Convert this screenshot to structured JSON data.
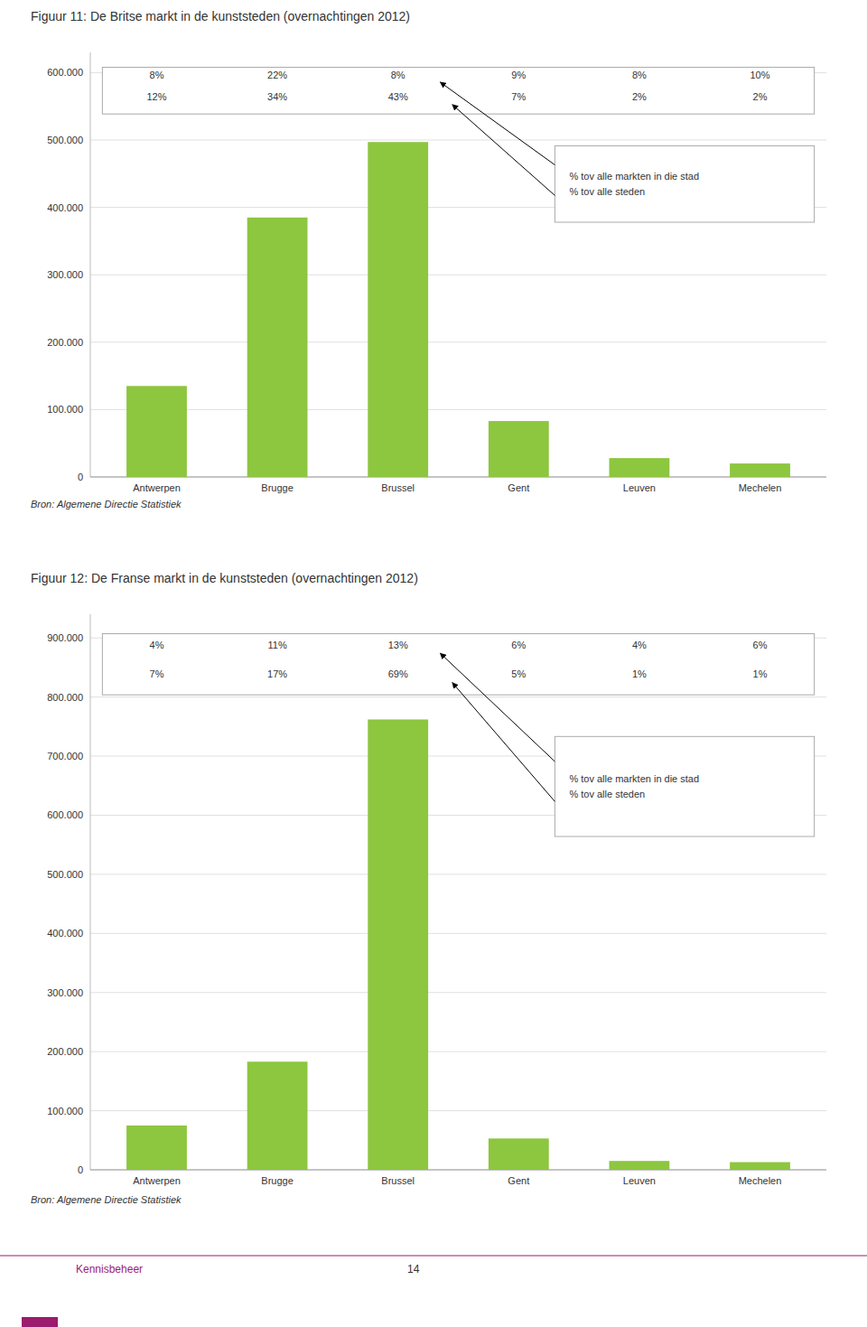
{
  "chart_data": [
    {
      "type": "bar",
      "title": "Figuur 11: De Britse markt in de kunststeden (overnachtingen 2012)",
      "categories": [
        "Antwerpen",
        "Brugge",
        "Brussel",
        "Gent",
        "Leuven",
        "Mechelen"
      ],
      "values": [
        135000,
        385000,
        497000,
        83000,
        28000,
        20000
      ],
      "color": "#8dc63f",
      "ylim": [
        0,
        630000
      ],
      "yticks": [
        0,
        {
          "value": 100000,
          "label": "100.000"
        },
        {
          "value": 200000,
          "label": "200.000"
        },
        {
          "value": 300000,
          "label": "300.000"
        },
        {
          "value": 400000,
          "label": "400.000"
        },
        {
          "value": 500000,
          "label": "500.000"
        },
        {
          "value": 600000,
          "label": "600.000"
        }
      ],
      "grid": true,
      "market_share": {
        "values": [
          8,
          22,
          8,
          9,
          8,
          10
        ],
        "labels": [
          "8%",
          "22%",
          "8%",
          "9%",
          "8%",
          "10%"
        ]
      },
      "city_share": {
        "values": [
          12,
          34,
          43,
          7,
          2,
          2
        ],
        "labels": [
          "12%",
          "34%",
          "43%",
          "7%",
          "2%",
          "2%"
        ]
      },
      "annotations": [
        "% tov alle markten in die stad",
        "% tov alle steden"
      ],
      "source": "Bron: Algemene Directie Statistiek"
    },
    {
      "type": "bar",
      "title": "Figuur 12: De Franse markt in de kunststeden (overnachtingen 2012)",
      "categories": [
        "Antwerpen",
        "Brugge",
        "Brussel",
        "Gent",
        "Leuven",
        "Mechelen"
      ],
      "values": [
        75000,
        183000,
        762000,
        53000,
        15000,
        13000
      ],
      "color": "#8dc63f",
      "ylim": [
        0,
        940000
      ],
      "yticks": [
        0,
        {
          "value": 100000,
          "label": "100.000"
        },
        {
          "value": 200000,
          "label": "200.000"
        },
        {
          "value": 300000,
          "label": "300.000"
        },
        {
          "value": 400000,
          "label": "400.000"
        },
        {
          "value": 500000,
          "label": "500.000"
        },
        {
          "value": 600000,
          "label": "600.000"
        },
        {
          "value": 700000,
          "label": "700.000"
        },
        {
          "value": 800000,
          "label": "800.000"
        },
        {
          "value": 900000,
          "label": "900.000"
        }
      ],
      "grid": true,
      "market_share": {
        "values": [
          4,
          11,
          13,
          6,
          4,
          6
        ],
        "labels": [
          "4%",
          "11%",
          "13%",
          "6%",
          "4%",
          "6%"
        ]
      },
      "city_share": {
        "values": [
          7,
          17,
          69,
          5,
          1,
          1
        ],
        "labels": [
          "7%",
          "17%",
          "69%",
          "5%",
          "1%",
          "1%"
        ]
      },
      "annotations": [
        "% tov alle markten in die stad",
        "% tov alle steden"
      ],
      "source": "Bron: Algemene Directie Statistiek"
    }
  ],
  "annotations": [
    "Kennisbeheer",
    "14"
  ]
}
